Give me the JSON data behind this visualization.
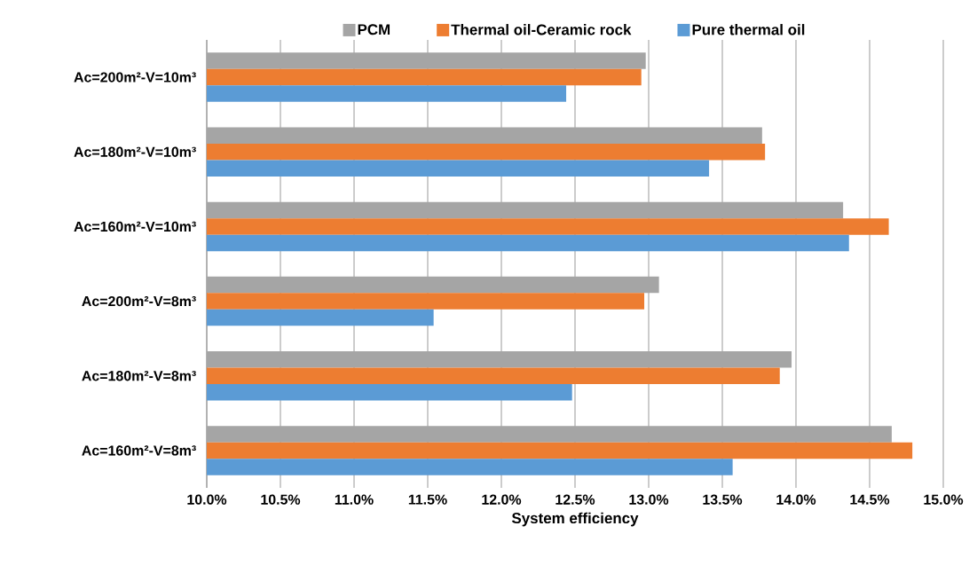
{
  "chart_data": {
    "type": "bar",
    "orientation": "horizontal",
    "xlabel": "System efficiency",
    "categories": [
      "Ac=200m²-V=10m³",
      "Ac=180m²-V=10m³",
      "Ac=160m²-V=10m³",
      "Ac=200m²-V=8m³",
      "Ac=180m²-V=8m³",
      "Ac=160m²-V=8m³"
    ],
    "series": [
      {
        "name": "PCM",
        "color": "#a5a5a5",
        "values": [
          12.98,
          13.77,
          14.32,
          13.07,
          13.97,
          14.65
        ]
      },
      {
        "name": "Thermal oil-Ceramic rock",
        "color": "#ed7d31",
        "values": [
          12.95,
          13.79,
          14.63,
          12.97,
          13.89,
          14.79
        ]
      },
      {
        "name": "Pure thermal oil",
        "color": "#5b9bd5",
        "values": [
          12.44,
          13.41,
          14.36,
          11.54,
          12.48,
          13.57
        ]
      }
    ],
    "xlim": [
      10,
      15
    ],
    "xticks": [
      {
        "value": 10,
        "label": "10.0%"
      },
      {
        "value": 10.5,
        "label": "10.5%"
      },
      {
        "value": 11,
        "label": "11.0%"
      },
      {
        "value": 11.5,
        "label": "11.5%"
      },
      {
        "value": 12,
        "label": "12.0%"
      },
      {
        "value": 12.5,
        "label": "12.5%"
      },
      {
        "value": 13,
        "label": "13.0%"
      },
      {
        "value": 13.5,
        "label": "13.5%"
      },
      {
        "value": 14,
        "label": "14.0%"
      },
      {
        "value": 14.5,
        "label": "14.5%"
      },
      {
        "value": 15,
        "label": "15.0%"
      }
    ],
    "grid": "x",
    "legend": "top"
  }
}
